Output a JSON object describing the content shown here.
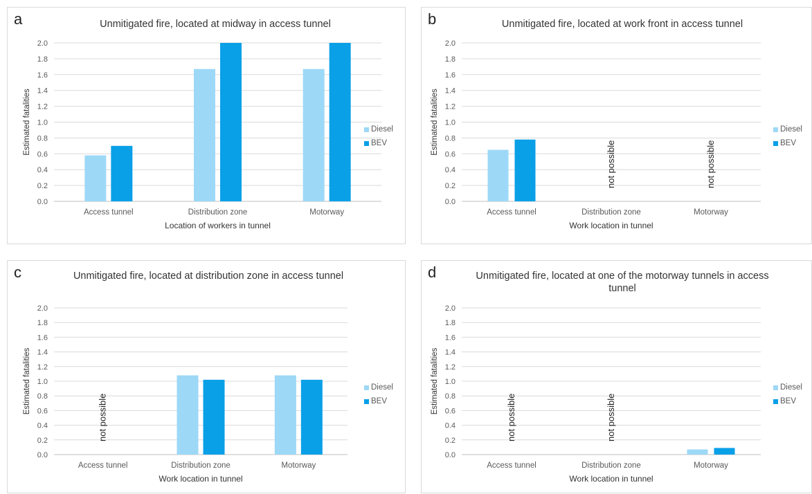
{
  "colors": {
    "diesel": "#9dd8f7",
    "bev": "#0aa0e8",
    "grid": "#d9d9d9",
    "axis": "#bfbfbf"
  },
  "chart_data": [
    {
      "letter": "a",
      "type": "bar",
      "title": "Unmitigated fire, located at midway in access tunnel",
      "xlabel": "Location of workers in tunnel",
      "ylabel": "Estimated fatalities",
      "ylim": [
        0,
        2.0
      ],
      "yticks": [
        "0.0",
        "0.2",
        "0.4",
        "0.6",
        "0.8",
        "1.0",
        "1.2",
        "1.4",
        "1.6",
        "1.8",
        "2.0"
      ],
      "grid": true,
      "legend": "right",
      "categories": [
        "Access tunnel",
        "Distribution zone",
        "Motorway"
      ],
      "series": [
        {
          "name": "Diesel",
          "values": [
            0.58,
            1.67,
            1.67
          ]
        },
        {
          "name": "BEV",
          "values": [
            0.7,
            2.0,
            2.0
          ]
        }
      ],
      "annotations": [
        "",
        "",
        ""
      ]
    },
    {
      "letter": "b",
      "type": "bar",
      "title": "Unmitigated fire, located at work front in access tunnel",
      "xlabel": "Work location in tunnel",
      "ylabel": "Estimated fatalities",
      "ylim": [
        0,
        2.0
      ],
      "yticks": [
        "0.0",
        "0.2",
        "0.4",
        "0.6",
        "0.8",
        "1.0",
        "1.2",
        "1.4",
        "1.6",
        "1.8",
        "2.0"
      ],
      "grid": true,
      "legend": "right",
      "categories": [
        "Access tunnel",
        "Distribution zone",
        "Motorway"
      ],
      "series": [
        {
          "name": "Diesel",
          "values": [
            0.65,
            null,
            null
          ]
        },
        {
          "name": "BEV",
          "values": [
            0.78,
            null,
            null
          ]
        }
      ],
      "annotations": [
        "",
        "not possible",
        "not possible"
      ]
    },
    {
      "letter": "c",
      "type": "bar",
      "title": "Unmitigated fire, located at distribution zone in access tunnel",
      "xlabel": "Work location in tunnel",
      "ylabel": "Estimated fatalities",
      "ylim": [
        0,
        2.0
      ],
      "yticks": [
        "0.0",
        "0.2",
        "0.4",
        "0.6",
        "0.8",
        "1.0",
        "1.2",
        "1.4",
        "1.6",
        "1.8",
        "2.0"
      ],
      "grid": true,
      "legend": "right",
      "categories": [
        "Access tunnel",
        "Distribution zone",
        "Motorway"
      ],
      "series": [
        {
          "name": "Diesel",
          "values": [
            null,
            1.08,
            1.08
          ]
        },
        {
          "name": "BEV",
          "values": [
            null,
            1.02,
            1.02
          ]
        }
      ],
      "annotations": [
        "not possible",
        "",
        ""
      ]
    },
    {
      "letter": "d",
      "type": "bar",
      "title": "Unmitigated fire, located at one of the motorway tunnels in access tunnel",
      "xlabel": "Work location in tunnel",
      "ylabel": "Estimated fatalities",
      "ylim": [
        0,
        2.0
      ],
      "yticks": [
        "0.0",
        "0.2",
        "0.4",
        "0.6",
        "0.8",
        "1.0",
        "1.2",
        "1.4",
        "1.6",
        "1.8",
        "2.0"
      ],
      "grid": true,
      "legend": "right",
      "categories": [
        "Access tunnel",
        "Distribution zone",
        "Motorway"
      ],
      "series": [
        {
          "name": "Diesel",
          "values": [
            null,
            null,
            0.07
          ]
        },
        {
          "name": "BEV",
          "values": [
            null,
            null,
            0.09
          ]
        }
      ],
      "annotations": [
        "not possible",
        "not possible",
        ""
      ]
    }
  ]
}
